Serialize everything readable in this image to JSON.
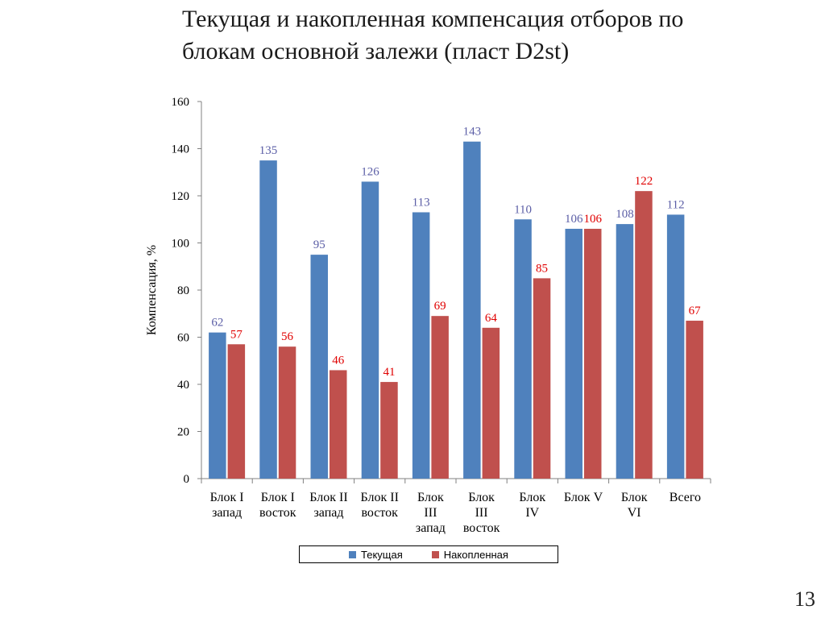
{
  "title_line1": "Текущая и накопленная компенсация отборов по",
  "title_line2": "блокам основной залежи (пласт D2st)",
  "page_number": "13",
  "colors": {
    "current": "#4f81bd",
    "cumulative": "#c0504d",
    "current_label": "#5b5ea6",
    "cumulative_label": "#e00000"
  },
  "chart_data": {
    "type": "bar",
    "ylabel": "Компенсация, %",
    "ylim": [
      0,
      160
    ],
    "yticks": [
      0,
      20,
      40,
      60,
      80,
      100,
      120,
      140,
      160
    ],
    "categories": [
      [
        "Блок I",
        "запад"
      ],
      [
        "Блок I",
        "восток"
      ],
      [
        "Блок II",
        "запад"
      ],
      [
        "Блок II",
        "восток"
      ],
      [
        "Блок",
        "III",
        "запад"
      ],
      [
        "Блок",
        "III",
        "восток"
      ],
      [
        "Блок",
        "IV"
      ],
      [
        "Блок V"
      ],
      [
        "Блок",
        "VI"
      ],
      [
        "Всего"
      ]
    ],
    "series": [
      {
        "name": "Текущая",
        "values": [
          62,
          135,
          95,
          126,
          113,
          143,
          110,
          106,
          108,
          112
        ]
      },
      {
        "name": "Накопленная",
        "values": [
          57,
          56,
          46,
          41,
          69,
          64,
          85,
          106,
          122,
          67
        ]
      }
    ],
    "grid": false,
    "legend_position": "bottom"
  }
}
